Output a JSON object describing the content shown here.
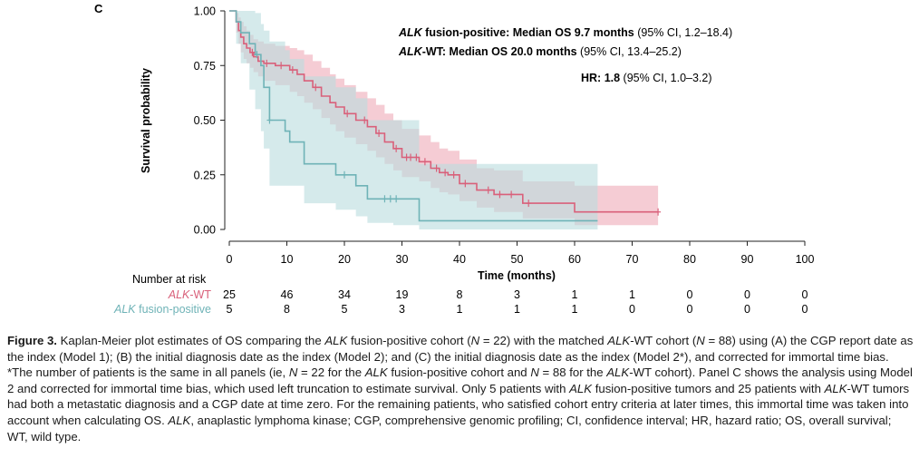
{
  "panel_label": "C",
  "chart_data": {
    "type": "line",
    "subtype": "kaplan-meier",
    "xlabel": "Time (months)",
    "ylabel": "Survival probability",
    "xlim": [
      0,
      100
    ],
    "ylim": [
      0,
      1
    ],
    "xticks": [
      0,
      10,
      20,
      30,
      40,
      50,
      60,
      70,
      80,
      90,
      100
    ],
    "yticks": [
      "0.00",
      "0.25",
      "0.50",
      "0.75",
      "1.00"
    ],
    "annotations": {
      "fusion_median_name": "ALK",
      "fusion_median_rest": " fusion-positive: Median OS 9.7 months",
      "fusion_median_ci": " (95% CI, 1.2–18.4)",
      "wt_median_name": "ALK",
      "wt_median_rest": "-WT: Median OS 20.0 months",
      "wt_median_ci": " (95% CI, 13.4–25.2)",
      "hr_label": "HR: 1.8",
      "hr_ci": " (95% CI, 1.0–3.2)"
    },
    "series": [
      {
        "name": "ALK-WT",
        "color": "#d9607a",
        "band_color": "#eeaab8",
        "times": [
          0,
          1.2,
          1.6,
          2.0,
          2.5,
          3.0,
          3.6,
          4.2,
          5.0,
          6.0,
          8.0,
          10.5,
          11.8,
          13.0,
          14.5,
          16.0,
          17.5,
          18.5,
          20.0,
          22.0,
          24.0,
          25.5,
          27.0,
          28.5,
          30.0,
          33.0,
          35.0,
          36.5,
          38.0,
          40.0,
          43.0,
          46.0,
          49.0,
          51.0,
          60.0,
          74.5
        ],
        "surv": [
          1.0,
          0.95,
          0.91,
          0.88,
          0.85,
          0.83,
          0.81,
          0.79,
          0.77,
          0.76,
          0.75,
          0.73,
          0.71,
          0.68,
          0.65,
          0.61,
          0.58,
          0.56,
          0.53,
          0.5,
          0.47,
          0.44,
          0.4,
          0.37,
          0.33,
          0.31,
          0.28,
          0.26,
          0.25,
          0.21,
          0.18,
          0.16,
          0.16,
          0.12,
          0.08,
          0.08
        ],
        "lower": [
          1.0,
          0.9,
          0.85,
          0.81,
          0.78,
          0.76,
          0.74,
          0.72,
          0.7,
          0.68,
          0.66,
          0.63,
          0.61,
          0.58,
          0.55,
          0.51,
          0.48,
          0.45,
          0.42,
          0.39,
          0.36,
          0.33,
          0.3,
          0.27,
          0.24,
          0.22,
          0.19,
          0.17,
          0.16,
          0.13,
          0.1,
          0.08,
          0.08,
          0.05,
          0.02,
          0.02
        ],
        "upper": [
          1.0,
          0.99,
          0.97,
          0.95,
          0.93,
          0.91,
          0.89,
          0.87,
          0.86,
          0.85,
          0.84,
          0.83,
          0.82,
          0.8,
          0.77,
          0.74,
          0.71,
          0.69,
          0.66,
          0.63,
          0.6,
          0.57,
          0.53,
          0.5,
          0.46,
          0.43,
          0.4,
          0.37,
          0.36,
          0.32,
          0.28,
          0.27,
          0.27,
          0.22,
          0.2,
          0.2
        ],
        "censored": [
          4.0,
          6.5,
          9.0,
          11.0,
          15.0,
          20.5,
          23.5,
          26.0,
          29.0,
          30.8,
          31.5,
          32.5,
          34.0,
          36.0,
          37.5,
          39.0,
          41.0,
          45.0,
          47.0,
          49.0,
          52.0,
          74.5
        ]
      },
      {
        "name": "ALK fusion-positive",
        "color": "#6fb3b7",
        "band_color": "#b9dcdd",
        "times": [
          0,
          1.2,
          2.0,
          3.5,
          4.5,
          5.5,
          6.0,
          7.0,
          9.7,
          10.5,
          13.0,
          18.5,
          22.0,
          24.0,
          28.5,
          33.0,
          64.0
        ],
        "surv": [
          1.0,
          0.95,
          0.9,
          0.85,
          0.8,
          0.75,
          0.65,
          0.5,
          0.45,
          0.4,
          0.3,
          0.25,
          0.2,
          0.14,
          0.14,
          0.04,
          0.04
        ],
        "lower": [
          1.0,
          0.85,
          0.76,
          0.64,
          0.55,
          0.45,
          0.37,
          0.2,
          0.2,
          0.2,
          0.12,
          0.09,
          0.06,
          0.03,
          0.02,
          0.0,
          0.0
        ],
        "upper": [
          1.0,
          1.0,
          1.0,
          1.0,
          0.99,
          0.94,
          0.91,
          0.86,
          0.82,
          0.78,
          0.7,
          0.65,
          0.6,
          0.5,
          0.5,
          0.3,
          0.3
        ],
        "censored": [
          4.8,
          7.0,
          20.0,
          27.0,
          28.0,
          29.0
        ]
      }
    ],
    "risk_table": {
      "title": "Number at risk",
      "times": [
        0,
        10,
        20,
        30,
        40,
        50,
        60,
        70,
        80,
        90,
        100
      ],
      "rows": [
        {
          "label": "ALK-WT",
          "color": "#d9607a",
          "values": [
            25,
            46,
            34,
            19,
            8,
            3,
            1,
            1,
            0,
            0,
            0
          ]
        },
        {
          "label": "ALK fusion-positive",
          "color": "#6fb3b7",
          "values": [
            5,
            8,
            5,
            3,
            1,
            1,
            1,
            0,
            0,
            0,
            0
          ]
        }
      ]
    }
  },
  "caption": {
    "figure_label": "Figure 3.",
    "t01": " Kaplan-Meier plot estimates of OS comparing the ",
    "i01": "ALK",
    "t02": " fusion-positive cohort (",
    "i02": "N",
    "t03": " = 22) with the matched ",
    "i03": "ALK",
    "t04": "-WT cohort (",
    "i04": "N",
    "t05": " = 88) using (A) the CGP report date as the index (Model 1); (B) the initial diagnosis date as the index (Model 2); and (C) the initial diagnosis date as the index (Model 2*), and corrected for immortal time bias. *The number of patients is the same in all panels (ie, ",
    "i05": "N",
    "t06": " = 22 for the ",
    "i06": "ALK",
    "t07": " fusion-positive cohort and ",
    "i07": "N",
    "t08": " = 88 for the ",
    "i08": "ALK",
    "t09": "-WT cohort). Panel C shows the analysis using Model 2 and corrected for immortal time bias, which used left truncation to estimate survival. Only 5 patients with ",
    "i09": "ALK",
    "t10": " fusion-positive tumors and 25 patients with ",
    "i10": "ALK",
    "t11": "-WT tumors had both a metastatic diagnosis and a CGP date at time zero. For the remaining patients, who satisfied cohort entry criteria at later times, this immortal time was taken into account when calculating OS. ",
    "i11": "ALK",
    "t12": ", anaplastic lymphoma kinase; CGP, comprehensive genomic profiling; CI, confidence interval; HR, hazard ratio; OS, overall survival; WT, wild type."
  }
}
